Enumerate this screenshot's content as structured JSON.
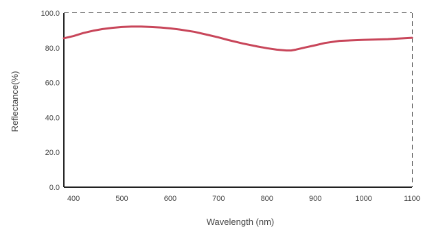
{
  "chart_data": {
    "type": "line",
    "title": "",
    "xlabel": "Wavelength (nm)",
    "ylabel": "Reflectance(%)",
    "xlim": [
      380,
      1100
    ],
    "ylim": [
      0,
      100
    ],
    "x_ticks": [
      400,
      500,
      600,
      700,
      800,
      900,
      1000,
      1100
    ],
    "x_tick_labels": [
      "400",
      "500",
      "600",
      "700",
      "800",
      "900",
      "1000",
      "1100"
    ],
    "y_ticks": [
      0,
      20,
      40,
      60,
      80,
      100
    ],
    "y_tick_labels": [
      "0.0",
      "20.0",
      "40.0",
      "60.0",
      "80.0",
      "100.0"
    ],
    "grid": true,
    "grid_style": "dashed",
    "series": [
      {
        "color": "#c8465a",
        "x": [
          380,
          400,
          420,
          440,
          460,
          480,
          500,
          520,
          540,
          560,
          580,
          600,
          620,
          650,
          680,
          700,
          720,
          750,
          780,
          800,
          820,
          840,
          850,
          860,
          880,
          900,
          920,
          950,
          1000,
          1050,
          1100
        ],
        "y": [
          85.5,
          86.8,
          88.5,
          89.8,
          90.8,
          91.5,
          92.0,
          92.2,
          92.2,
          92.0,
          91.7,
          91.2,
          90.5,
          89.2,
          87.3,
          86.0,
          84.5,
          82.5,
          80.8,
          79.8,
          79.0,
          78.5,
          78.5,
          79.0,
          80.3,
          81.5,
          82.8,
          84.0,
          84.6,
          85.0,
          85.8
        ]
      }
    ]
  }
}
